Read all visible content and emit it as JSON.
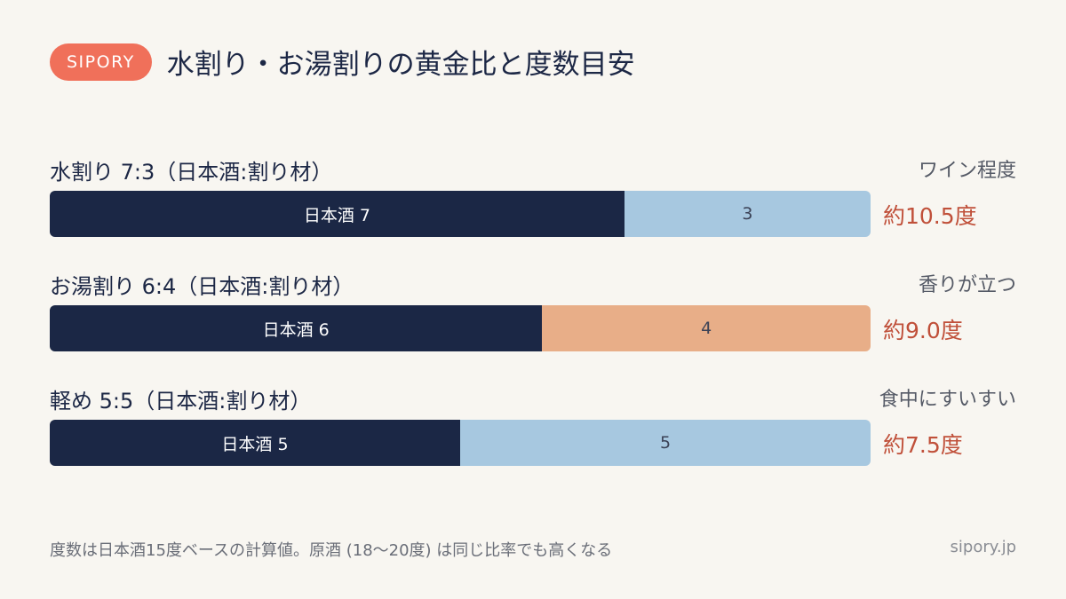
{
  "header": {
    "badge": "SIPORY",
    "title": "水割り・お湯割りの黄金比と度数目安"
  },
  "colors": {
    "sake": "#1b2745",
    "water": "#a7c8e0",
    "hot_water": "#e8ae88",
    "accent": "#c0503a",
    "badge": "#f0705a"
  },
  "chart_data": {
    "type": "bar",
    "stacked": true,
    "orientation": "horizontal",
    "categories": [
      "水割り 7:3（日本酒:割り材）",
      "お湯割り 6:4（日本酒:割り材）",
      "軽め 5:5（日本酒:割り材）"
    ],
    "series": [
      {
        "name": "日本酒",
        "values": [
          7,
          6,
          5
        ]
      },
      {
        "values": [
          3,
          4,
          5
        ]
      }
    ],
    "notes": [
      "ワイン程度",
      "香りが立つ",
      "食中にすいすい"
    ],
    "abv_labels": [
      "約10.5度",
      "約9.0度",
      "約7.5度"
    ],
    "mixer_colors": [
      "#a7c8e0",
      "#e8ae88",
      "#a7c8e0"
    ],
    "xlim": [
      0,
      10
    ]
  },
  "footer": {
    "note": "度数は日本酒15度ベースの計算値。原酒 (18〜20度) は同じ比率でも高くなる",
    "site": "sipory.jp"
  }
}
